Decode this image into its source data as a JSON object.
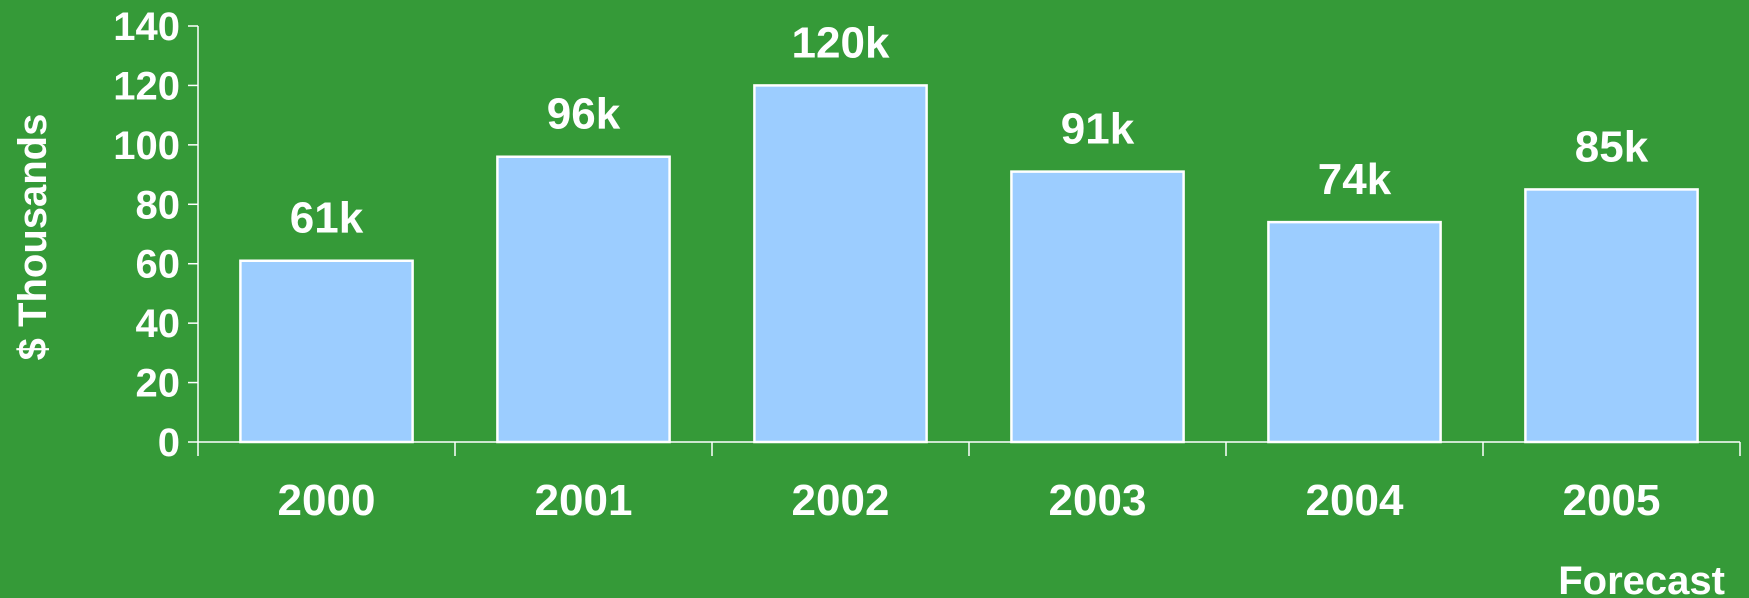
{
  "chart_data": {
    "type": "bar",
    "title": "",
    "xlabel": "",
    "ylabel": "$ Thousands",
    "categories": [
      "2000",
      "2001",
      "2002",
      "2003",
      "2004",
      "2005"
    ],
    "category_sublabels": [
      "",
      "",
      "",
      "",
      "",
      "Forecast"
    ],
    "values": [
      61,
      96,
      120,
      91,
      74,
      85
    ],
    "data_labels": [
      "61k",
      "96k",
      "120k",
      "91k",
      "74k",
      "85k"
    ],
    "ylim": [
      0,
      140
    ],
    "yticks": [
      0,
      20,
      40,
      60,
      80,
      100,
      120,
      140
    ],
    "grid": false,
    "legend": "none",
    "colors": {
      "background": "#359a38",
      "bar_fill": "#9ccdff",
      "bar_stroke": "#ffffff",
      "axis": "#ffffff",
      "text": "#ffffff"
    }
  }
}
